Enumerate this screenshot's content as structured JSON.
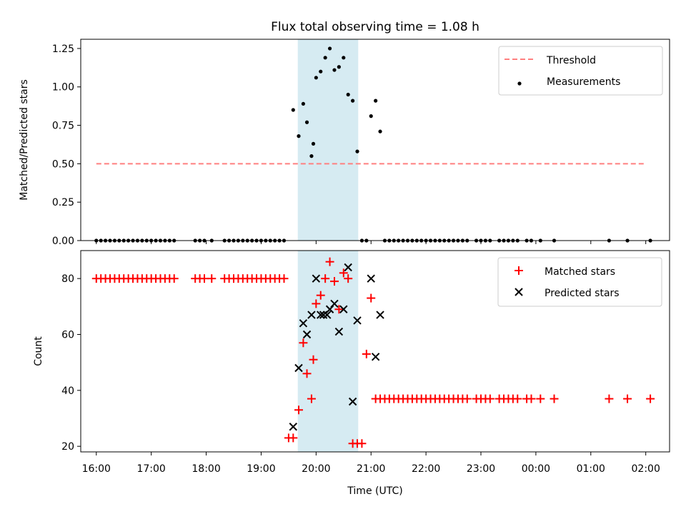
{
  "chart_data": [
    {
      "type": "scatter",
      "title": "Flux total observing time = 1.08 h",
      "xlabel": "",
      "ylabel": "Matched/Predicted stars",
      "ylim": [
        0,
        1.31
      ],
      "yticks": [
        0,
        0.25,
        0.5,
        0.75,
        1.0,
        1.25
      ],
      "ytick_labels": [
        "0.00",
        "0.25",
        "0.50",
        "0.75",
        "1.00",
        "1.25"
      ],
      "xlim": [
        "15:43",
        "02:26"
      ],
      "shaded_window": {
        "start": "19:40",
        "end": "20:46",
        "color": "#add8e6"
      },
      "legend_position": "top-right",
      "series": [
        {
          "name": "Threshold",
          "style": "dashed-line",
          "color": "#ff7f7f",
          "x": [
            "16:00",
            "01:58"
          ],
          "y": [
            0.5,
            0.5
          ]
        },
        {
          "name": "Measurements",
          "style": "dot",
          "color": "#000000",
          "x": [
            "16:00",
            "16:05",
            "16:10",
            "16:15",
            "16:20",
            "16:25",
            "16:30",
            "16:35",
            "16:40",
            "16:45",
            "16:50",
            "16:55",
            "17:00",
            "17:05",
            "17:10",
            "17:15",
            "17:20",
            "17:25",
            "17:48",
            "17:53",
            "17:58",
            "18:06",
            "18:20",
            "18:25",
            "18:30",
            "18:35",
            "18:40",
            "18:45",
            "18:50",
            "18:55",
            "19:00",
            "19:05",
            "19:10",
            "19:15",
            "19:20",
            "19:25",
            "19:35",
            "19:41",
            "19:46",
            "19:50",
            "19:55",
            "19:57",
            "20:00",
            "20:05",
            "20:10",
            "20:15",
            "20:20",
            "20:25",
            "20:30",
            "20:35",
            "20:40",
            "20:45",
            "20:50",
            "20:55",
            "21:00",
            "21:05",
            "21:10",
            "21:15",
            "21:20",
            "21:25",
            "21:30",
            "21:35",
            "21:40",
            "21:45",
            "21:50",
            "21:55",
            "22:00",
            "22:05",
            "22:10",
            "22:15",
            "22:20",
            "22:25",
            "22:30",
            "22:35",
            "22:40",
            "22:45",
            "22:55",
            "23:00",
            "23:05",
            "23:10",
            "23:20",
            "23:25",
            "23:30",
            "23:35",
            "23:40",
            "23:50",
            "23:55",
            "00:05",
            "00:20",
            "01:20",
            "01:40",
            "02:05"
          ],
          "y": [
            0,
            0,
            0,
            0,
            0,
            0,
            0,
            0,
            0,
            0,
            0,
            0,
            0,
            0,
            0,
            0,
            0,
            0,
            0,
            0,
            0,
            0,
            0,
            0,
            0,
            0,
            0,
            0,
            0,
            0,
            0,
            0,
            0,
            0,
            0,
            0,
            0.85,
            0.68,
            0.89,
            0.77,
            0.55,
            0.63,
            1.06,
            1.1,
            1.19,
            1.25,
            1.11,
            1.13,
            1.19,
            0.95,
            0.91,
            0.58,
            0,
            0,
            0.81,
            0.91,
            0.71,
            0,
            0,
            0,
            0,
            0,
            0,
            0,
            0,
            0,
            0,
            0,
            0,
            0,
            0,
            0,
            0,
            0,
            0,
            0,
            0,
            0,
            0,
            0,
            0,
            0,
            0,
            0,
            0,
            0,
            0,
            0,
            0,
            0,
            0,
            0
          ]
        }
      ]
    },
    {
      "type": "scatter",
      "title": "",
      "xlabel": "Time (UTC)",
      "ylabel": "Count",
      "ylim": [
        18,
        90
      ],
      "yticks": [
        20,
        40,
        60,
        80
      ],
      "ytick_labels": [
        "20",
        "40",
        "60",
        "80"
      ],
      "xlim": [
        "15:43",
        "02:26"
      ],
      "xticks": [
        "16:00",
        "17:00",
        "18:00",
        "19:00",
        "20:00",
        "21:00",
        "22:00",
        "23:00",
        "00:00",
        "01:00",
        "02:00"
      ],
      "shaded_window": {
        "start": "19:40",
        "end": "20:46",
        "color": "#add8e6"
      },
      "legend_position": "top-right",
      "series": [
        {
          "name": "Matched stars",
          "marker": "plus",
          "color": "#ff0000",
          "x": [
            "16:00",
            "16:05",
            "16:10",
            "16:15",
            "16:20",
            "16:25",
            "16:30",
            "16:35",
            "16:40",
            "16:45",
            "16:50",
            "16:55",
            "17:00",
            "17:05",
            "17:10",
            "17:15",
            "17:20",
            "17:25",
            "17:48",
            "17:53",
            "17:58",
            "18:06",
            "18:20",
            "18:25",
            "18:30",
            "18:35",
            "18:40",
            "18:45",
            "18:50",
            "18:55",
            "19:00",
            "19:05",
            "19:10",
            "19:15",
            "19:20",
            "19:25",
            "19:30",
            "19:35",
            "19:41",
            "19:46",
            "19:50",
            "19:55",
            "19:57",
            "20:00",
            "20:05",
            "20:10",
            "20:15",
            "20:20",
            "20:25",
            "20:30",
            "20:35",
            "20:40",
            "20:45",
            "20:50",
            "20:55",
            "21:00",
            "21:05",
            "21:10",
            "21:15",
            "21:20",
            "21:25",
            "21:30",
            "21:35",
            "21:40",
            "21:45",
            "21:50",
            "21:55",
            "22:00",
            "22:05",
            "22:10",
            "22:15",
            "22:20",
            "22:25",
            "22:30",
            "22:35",
            "22:40",
            "22:45",
            "22:55",
            "23:00",
            "23:05",
            "23:10",
            "23:20",
            "23:25",
            "23:30",
            "23:35",
            "23:40",
            "23:50",
            "23:55",
            "00:05",
            "00:20",
            "01:20",
            "01:40",
            "02:05"
          ],
          "y": [
            80,
            80,
            80,
            80,
            80,
            80,
            80,
            80,
            80,
            80,
            80,
            80,
            80,
            80,
            80,
            80,
            80,
            80,
            80,
            80,
            80,
            80,
            80,
            80,
            80,
            80,
            80,
            80,
            80,
            80,
            80,
            80,
            80,
            80,
            80,
            80,
            23,
            23,
            33,
            57,
            46,
            37,
            51,
            71,
            74,
            80,
            86,
            79,
            69,
            82,
            80,
            21,
            21,
            21,
            53,
            73,
            37,
            37,
            37,
            37,
            37,
            37,
            37,
            37,
            37,
            37,
            37,
            37,
            37,
            37,
            37,
            37,
            37,
            37,
            37,
            37,
            37,
            37,
            37,
            37,
            37,
            37,
            37,
            37,
            37,
            37,
            37,
            37,
            37,
            37,
            37,
            37,
            37
          ]
        },
        {
          "name": "Predicted stars",
          "marker": "x",
          "color": "#000000",
          "x": [
            "19:35",
            "19:41",
            "19:46",
            "19:50",
            "19:55",
            "20:00",
            "20:05",
            "20:08",
            "20:12",
            "20:15",
            "20:20",
            "20:25",
            "20:30",
            "20:35",
            "20:40",
            "20:45",
            "21:00",
            "21:05",
            "21:10"
          ],
          "y": [
            27,
            48,
            64,
            60,
            67,
            80,
            67,
            67,
            67,
            69,
            71,
            61,
            69,
            84,
            36,
            65,
            80,
            52,
            67
          ]
        }
      ]
    }
  ]
}
